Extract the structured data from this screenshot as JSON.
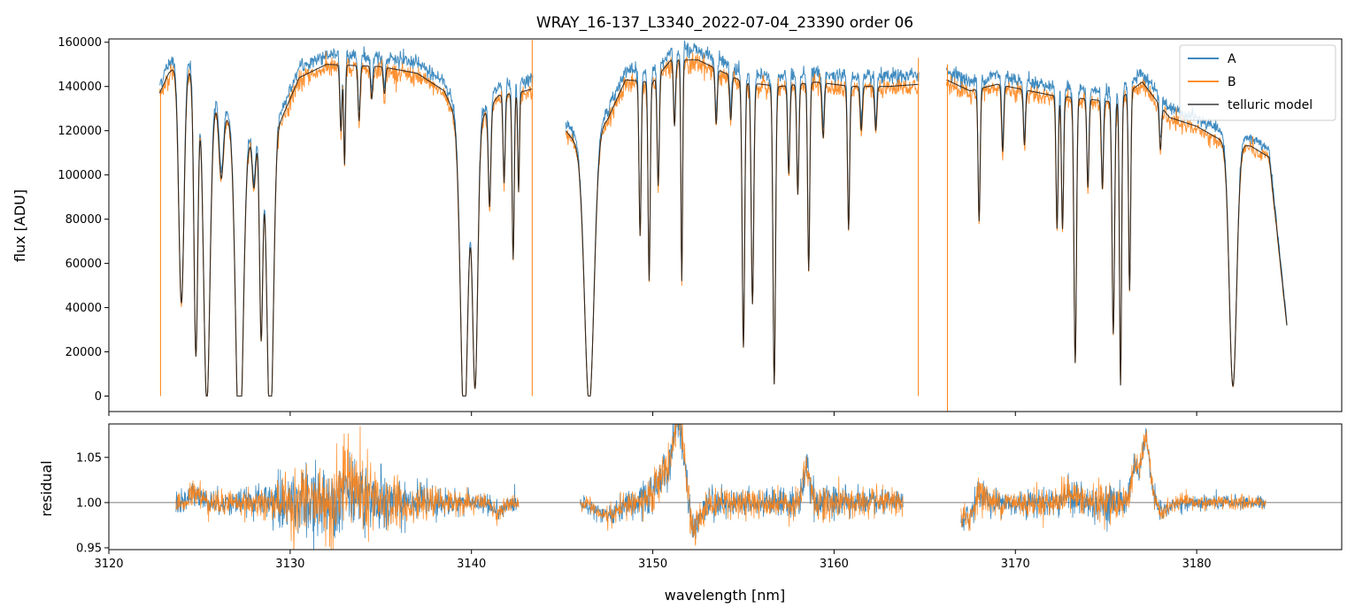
{
  "chart_data": {
    "type": "line",
    "title": "WRAY_16-137_L3340_2022-07-04_23390  order 06",
    "xlabel": "wavelength [nm]",
    "xlim": [
      3120,
      3188
    ],
    "x_ticks": [
      3120,
      3130,
      3140,
      3150,
      3160,
      3170,
      3180
    ],
    "x_tick_labels": [
      "3120",
      "3130",
      "3140",
      "3150",
      "3160",
      "3170",
      "3180"
    ],
    "top_panel": {
      "ylabel": "flux [ADU]",
      "ylim": [
        -7000,
        161500
      ],
      "y_ticks": [
        0,
        20000,
        40000,
        60000,
        80000,
        100000,
        120000,
        140000,
        160000
      ],
      "y_tick_labels": [
        "0",
        "20000",
        "40000",
        "60000",
        "80000",
        "100000",
        "120000",
        "140000",
        "160000"
      ],
      "legend_position": "top-right",
      "segments": [
        [
          3122.8,
          3143.4
        ],
        [
          3145.2,
          3164.7
        ],
        [
          3166.2,
          3185.0
        ]
      ],
      "series": [
        {
          "name": "A",
          "color": "#1f77b4"
        },
        {
          "name": "B",
          "color": "#ff7f0e"
        },
        {
          "name": "telluric model",
          "color": "#555555"
        }
      ],
      "continuum": [
        [
          3122.8,
          137000
        ],
        [
          3123.3,
          146000
        ],
        [
          3124.0,
          152000
        ],
        [
          3126.0,
          130000
        ],
        [
          3128.0,
          114000
        ],
        [
          3129.5,
          125000
        ],
        [
          3130.5,
          144000
        ],
        [
          3132.0,
          150000
        ],
        [
          3135.0,
          149000
        ],
        [
          3137.0,
          146000
        ],
        [
          3138.5,
          138000
        ],
        [
          3139.2,
          125000
        ],
        [
          3140.5,
          125000
        ],
        [
          3141.5,
          136000
        ],
        [
          3142.5,
          137000
        ],
        [
          3143.4,
          139000
        ],
        [
          3145.2,
          120000
        ],
        [
          3146.0,
          112000
        ],
        [
          3147.5,
          125000
        ],
        [
          3148.5,
          143000
        ],
        [
          3150.0,
          142000
        ],
        [
          3151.0,
          152000
        ],
        [
          3152.5,
          152000
        ],
        [
          3153.5,
          148000
        ],
        [
          3155.0,
          142000
        ],
        [
          3157.0,
          140000
        ],
        [
          3159.0,
          142000
        ],
        [
          3161.0,
          140000
        ],
        [
          3163.0,
          140000
        ],
        [
          3164.7,
          141000
        ],
        [
          3166.2,
          143000
        ],
        [
          3167.5,
          138000
        ],
        [
          3169.0,
          141000
        ],
        [
          3172.0,
          136000
        ],
        [
          3175.5,
          133000
        ],
        [
          3177.0,
          142000
        ],
        [
          3178.5,
          126000
        ],
        [
          3180.0,
          122000
        ],
        [
          3181.5,
          115000
        ],
        [
          3183.0,
          113000
        ],
        [
          3184.0,
          108000
        ],
        [
          3185.0,
          30000
        ]
      ],
      "absorption_lines": [
        [
          3124.0,
          110000,
          0.25
        ],
        [
          3124.8,
          125000,
          0.18
        ],
        [
          3125.4,
          140000,
          0.3
        ],
        [
          3126.2,
          30000,
          0.2
        ],
        [
          3127.2,
          150000,
          0.35
        ],
        [
          3128.0,
          20000,
          0.15
        ],
        [
          3128.4,
          90000,
          0.15
        ],
        [
          3128.9,
          140000,
          0.3
        ],
        [
          3132.8,
          30000,
          0.1
        ],
        [
          3133.0,
          45000,
          0.08
        ],
        [
          3133.8,
          25000,
          0.1
        ],
        [
          3134.5,
          15000,
          0.1
        ],
        [
          3135.2,
          12000,
          0.1
        ],
        [
          3139.6,
          140000,
          0.35
        ],
        [
          3140.2,
          120000,
          0.25
        ],
        [
          3141.0,
          45000,
          0.12
        ],
        [
          3141.8,
          40000,
          0.1
        ],
        [
          3142.3,
          75000,
          0.1
        ],
        [
          3142.6,
          45000,
          0.08
        ],
        [
          3146.5,
          120000,
          0.45
        ],
        [
          3149.3,
          70000,
          0.1
        ],
        [
          3149.8,
          90000,
          0.1
        ],
        [
          3150.3,
          50000,
          0.1
        ],
        [
          3151.2,
          30000,
          0.1
        ],
        [
          3151.6,
          100000,
          0.08
        ],
        [
          3153.5,
          25000,
          0.1
        ],
        [
          3154.3,
          20000,
          0.1
        ],
        [
          3155.0,
          120000,
          0.12
        ],
        [
          3155.5,
          100000,
          0.12
        ],
        [
          3156.7,
          135000,
          0.12
        ],
        [
          3157.5,
          40000,
          0.1
        ],
        [
          3158.0,
          50000,
          0.1
        ],
        [
          3158.6,
          85000,
          0.1
        ],
        [
          3159.4,
          25000,
          0.1
        ],
        [
          3160.8,
          65000,
          0.1
        ],
        [
          3161.5,
          20000,
          0.1
        ],
        [
          3162.3,
          20000,
          0.1
        ],
        [
          3168.0,
          60000,
          0.1
        ],
        [
          3169.3,
          30000,
          0.1
        ],
        [
          3170.5,
          25000,
          0.1
        ],
        [
          3172.3,
          60000,
          0.1
        ],
        [
          3172.6,
          60000,
          0.1
        ],
        [
          3173.3,
          120000,
          0.12
        ],
        [
          3174.0,
          40000,
          0.1
        ],
        [
          3174.8,
          40000,
          0.1
        ],
        [
          3175.4,
          105000,
          0.12
        ],
        [
          3175.8,
          130000,
          0.1
        ],
        [
          3176.3,
          90000,
          0.1
        ],
        [
          3178.0,
          20000,
          0.1
        ],
        [
          3182.0,
          110000,
          0.35
        ]
      ]
    },
    "bottom_panel": {
      "ylabel": "residual",
      "ylim": [
        0.948,
        1.087
      ],
      "y_ticks": [
        0.95,
        1.0,
        1.05
      ],
      "y_tick_labels": [
        "0.95",
        "1.00",
        "1.05"
      ],
      "reference_line": 1.0,
      "segments": [
        [
          3123.7,
          3142.6
        ],
        [
          3146.0,
          3163.8
        ],
        [
          3167.0,
          3183.8
        ]
      ],
      "noise_profile": [
        [
          3123.7,
          0.012
        ],
        [
          3128.0,
          0.012
        ],
        [
          3130.0,
          0.03
        ],
        [
          3134.0,
          0.04
        ],
        [
          3137.0,
          0.015
        ],
        [
          3140.0,
          0.01
        ],
        [
          3142.6,
          0.008
        ],
        [
          3146.0,
          0.006
        ],
        [
          3148.5,
          0.012
        ],
        [
          3150.0,
          0.02
        ],
        [
          3153.0,
          0.015
        ],
        [
          3156.0,
          0.012
        ],
        [
          3159.0,
          0.018
        ],
        [
          3163.8,
          0.01
        ],
        [
          3167.0,
          0.015
        ],
        [
          3170.0,
          0.012
        ],
        [
          3175.0,
          0.018
        ],
        [
          3178.0,
          0.008
        ],
        [
          3183.8,
          0.006
        ]
      ],
      "bumps": [
        [
          3124.8,
          0.012,
          0.4
        ],
        [
          3133.2,
          0.02,
          0.6
        ],
        [
          3141.5,
          -0.01,
          0.5
        ],
        [
          3147.5,
          -0.015,
          0.8
        ],
        [
          3150.5,
          0.03,
          0.5
        ],
        [
          3151.4,
          0.09,
          0.45
        ],
        [
          3152.3,
          -0.03,
          0.4
        ],
        [
          3158.5,
          0.04,
          0.25
        ],
        [
          3168.0,
          0.015,
          0.4
        ],
        [
          3167.3,
          -0.02,
          0.6
        ],
        [
          3173.0,
          0.01,
          0.5
        ],
        [
          3176.6,
          0.04,
          0.3
        ],
        [
          3177.2,
          0.07,
          0.3
        ],
        [
          3178.2,
          -0.01,
          0.4
        ]
      ]
    }
  }
}
